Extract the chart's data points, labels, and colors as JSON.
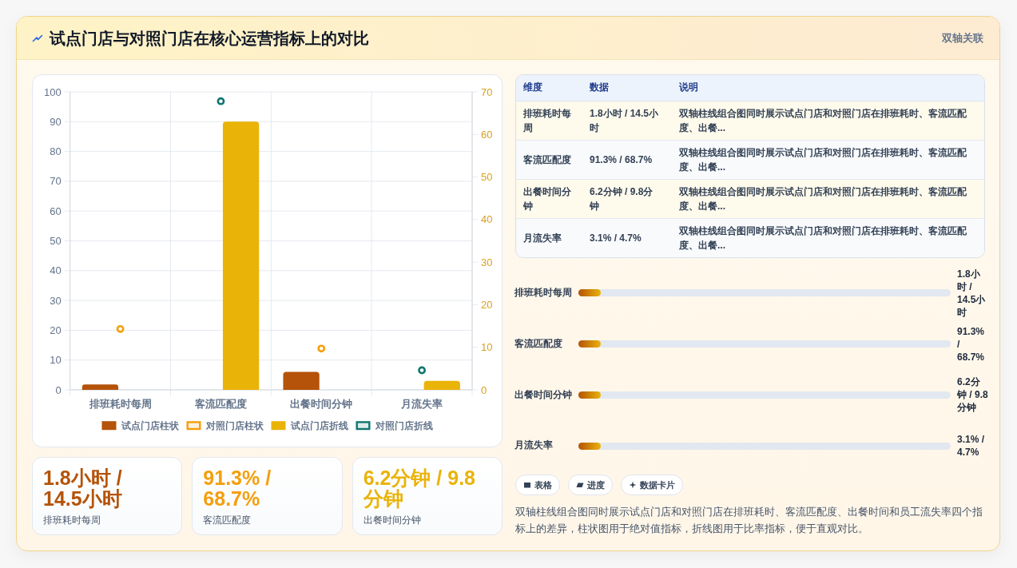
{
  "chart_data": [
    {
      "type": "other",
      "title": "试点门店与对照门店在核心运营指标上的对比",
      "subtitle": "双轴关联"
    },
    {
      "type": "bar",
      "categories": [
        "排班耗时每周",
        "客流匹配度",
        "出餐时间分钟",
        "月流失率"
      ],
      "series": [
        {
          "name": "试点门店柱状",
          "type": "bar",
          "color": "#b45309",
          "values": [
            1.8,
            null,
            6,
            null
          ]
        },
        {
          "name": "对照门店柱状",
          "type": "scatter",
          "axis": "y2",
          "color": "#f59e0b",
          "values": [
            14.3,
            null,
            9.7,
            null
          ]
        },
        {
          "name": "试点门店折线",
          "type": "bar",
          "color": "#eab308",
          "values": [
            null,
            90,
            null,
            3
          ]
        },
        {
          "name": "对照门店折线",
          "type": "scatter",
          "axis": "y2",
          "color": "#0f766e",
          "values": [
            null,
            67.8,
            null,
            4.6
          ]
        }
      ],
      "ylim": [
        0,
        100
      ],
      "yticks": [
        0,
        10,
        20,
        30,
        40,
        50,
        60,
        70,
        80,
        90,
        100
      ],
      "y2lim": [
        0,
        70
      ],
      "y2ticks": [
        0,
        10,
        20,
        30,
        40,
        50,
        60,
        70
      ],
      "grid": true,
      "legend": "bottom",
      "marker": "circle"
    },
    {
      "type": "other",
      "categories": [
        "维度",
        "数据",
        "说明"
      ],
      "y_categories": [
        "排班耗时每周",
        "客流匹配度",
        "出餐时间分钟",
        "月流失率"
      ],
      "cell_labels": [
        [
          "1.8小时 / 14.5小时",
          "双轴柱线组合图同时展示试点门店和对照门店在排班耗时、客流匹配度、出餐..."
        ],
        [
          "91.3% / 68.7%",
          "双轴柱线组合图同时展示试点门店和对照门店在排班耗时、客流匹配度、出餐..."
        ],
        [
          "6.2分钟 / 9.8分钟",
          "双轴柱线组合图同时展示试点门店和对照门店在排班耗时、客流匹配度、出餐..."
        ],
        [
          "3.1% / 4.7%",
          "双轴柱线组合图同时展示试点门店和对照门店在排班耗时、客流匹配度、出餐..."
        ]
      ]
    },
    {
      "type": "other",
      "y_categories": [
        "排班耗时每周",
        "客流匹配度",
        "出餐时间分钟",
        "月流失率"
      ],
      "value_labels": [
        "1.8小时 / 14.5小时",
        "91.3% / 68.7%",
        "6.2分钟 / 9.8分钟",
        "3.1% / 4.7%"
      ]
    },
    {
      "type": "other",
      "categories": [
        "排班耗时每周",
        "客流匹配度",
        "出餐时间分钟"
      ],
      "value_labels": [
        "1.8小时 / 14.5小时",
        "91.3% / 68.7%",
        "6.2分钟 / 9.8分钟"
      ]
    },
    {
      "type": "other",
      "categories": [
        "表格",
        "进度",
        "数据卡片"
      ],
      "annotations": [
        "双轴柱线组合图同时展示试点门店和对照门店在排班耗时、客流匹配度、出餐时间和员工流失率四个指标上的差异，柱状图用于绝对值指标，折线图用于比率指标，便于直观对比。"
      ]
    }
  ]
}
